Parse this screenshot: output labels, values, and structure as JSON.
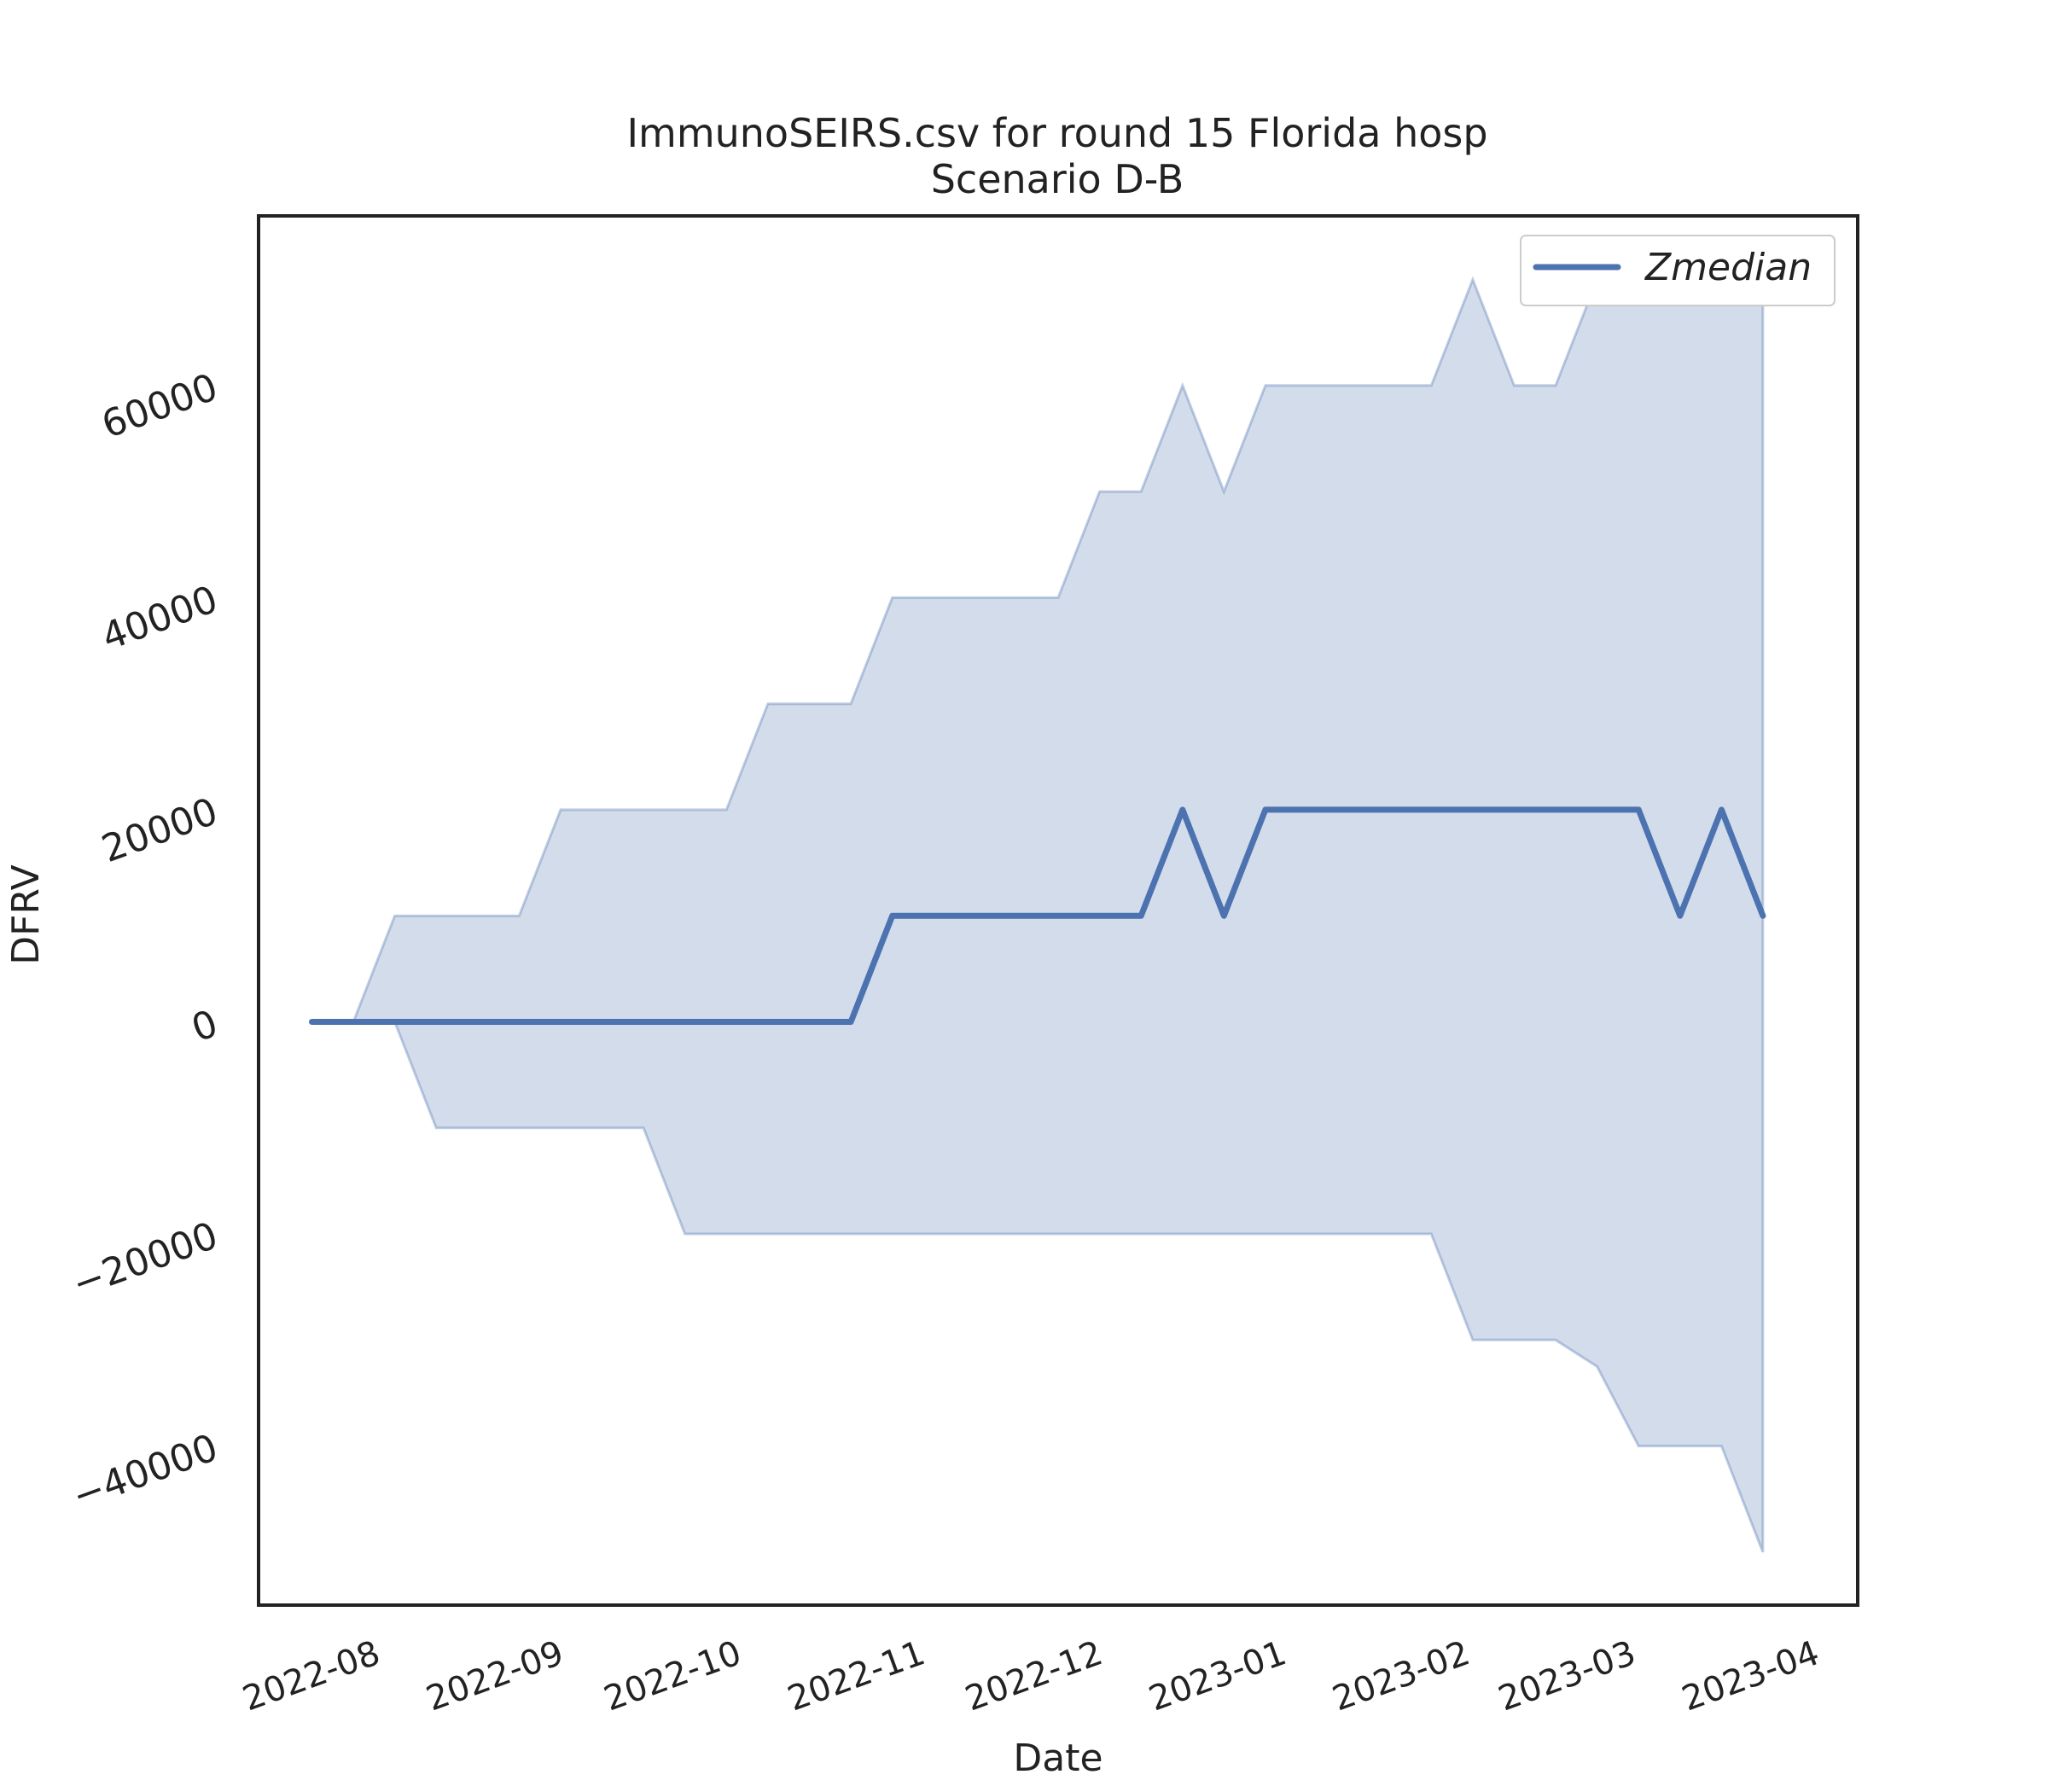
{
  "chart_data": {
    "type": "area",
    "title": "ImmunoSEIRS.csv for round 15 Florida hosp",
    "subtitle": "Scenario D-B",
    "xlabel": "Date",
    "ylabel": "DFRV",
    "xlim": [
      "2022-07-14",
      "2023-04-10"
    ],
    "ylim": [
      -55000,
      76000
    ],
    "x_ticks": [
      "2022-08",
      "2022-09",
      "2022-10",
      "2022-11",
      "2022-12",
      "2023-01",
      "2023-02",
      "2023-03",
      "2023-04"
    ],
    "y_ticks": [
      -40000,
      -20000,
      0,
      20000,
      40000,
      60000
    ],
    "grid": false,
    "legend_position": "top-right",
    "x": [
      "2022-07-23",
      "2022-07-30",
      "2022-08-06",
      "2022-08-13",
      "2022-08-20",
      "2022-08-27",
      "2022-09-03",
      "2022-09-10",
      "2022-09-17",
      "2022-09-24",
      "2022-10-01",
      "2022-10-08",
      "2022-10-15",
      "2022-10-22",
      "2022-10-29",
      "2022-11-05",
      "2022-11-12",
      "2022-11-19",
      "2022-11-26",
      "2022-12-03",
      "2022-12-10",
      "2022-12-17",
      "2022-12-24",
      "2022-12-31",
      "2023-01-07",
      "2023-01-14",
      "2023-01-21",
      "2023-01-28",
      "2023-02-04",
      "2023-02-11",
      "2023-02-18",
      "2023-02-25",
      "2023-03-04",
      "2023-03-11",
      "2023-03-18",
      "2023-03-25"
    ],
    "series": [
      {
        "name": "Zmedian",
        "color": "#4c72b0",
        "values": [
          0,
          0,
          0,
          0,
          0,
          0,
          0,
          0,
          0,
          0,
          0,
          0,
          0,
          0,
          10000,
          10000,
          10000,
          10000,
          10000,
          10000,
          10000,
          20000,
          10000,
          20000,
          20000,
          20000,
          20000,
          20000,
          20000,
          20000,
          20000,
          20000,
          20000,
          10000,
          20000,
          10000
        ]
      }
    ],
    "band": {
      "color": "#4c72b0",
      "opacity": 0.25,
      "upper": [
        0,
        0,
        10000,
        10000,
        10000,
        10000,
        20000,
        20000,
        20000,
        20000,
        20000,
        30000,
        30000,
        30000,
        40000,
        40000,
        40000,
        40000,
        40000,
        50000,
        50000,
        60000,
        50000,
        60000,
        60000,
        60000,
        60000,
        60000,
        70000,
        60000,
        60000,
        70000,
        70000,
        70000,
        70000,
        70000
      ],
      "lower": [
        0,
        0,
        0,
        -10000,
        -10000,
        -10000,
        -10000,
        -10000,
        -10000,
        -20000,
        -20000,
        -20000,
        -20000,
        -20000,
        -20000,
        -20000,
        -20000,
        -20000,
        -20000,
        -20000,
        -20000,
        -20000,
        -20000,
        -20000,
        -20000,
        -20000,
        -20000,
        -20000,
        -30000,
        -30000,
        -30000,
        -32500,
        -40000,
        -40000,
        -40000,
        -50000
      ]
    }
  }
}
